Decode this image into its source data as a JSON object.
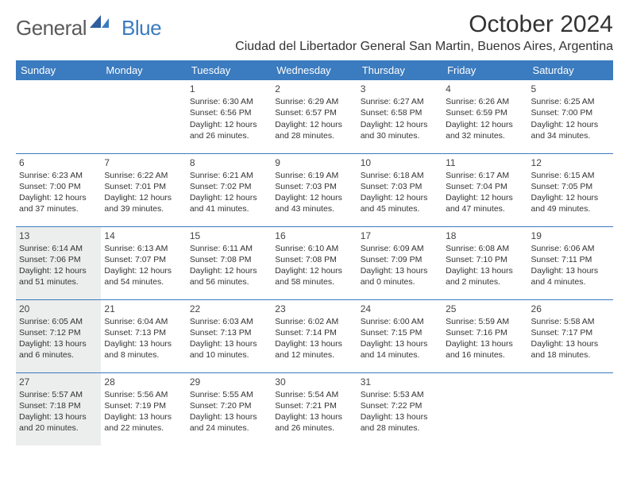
{
  "logo": {
    "general": "General",
    "blue": "Blue"
  },
  "title": "October 2024",
  "location": "Ciudad del Libertador General San Martin, Buenos Aires, Argentina",
  "colors": {
    "header_bg": "#3b7bbf",
    "header_text": "#ffffff",
    "highlight_bg": "#eceded",
    "row_border": "#3b7bbf",
    "text": "#333333"
  },
  "dayHeaders": [
    "Sunday",
    "Monday",
    "Tuesday",
    "Wednesday",
    "Thursday",
    "Friday",
    "Saturday"
  ],
  "weeks": [
    [
      {
        "blank": true
      },
      {
        "blank": true
      },
      {
        "n": "1",
        "sr": "6:30 AM",
        "ss": "6:56 PM",
        "dl": "12 hours and 26 minutes."
      },
      {
        "n": "2",
        "sr": "6:29 AM",
        "ss": "6:57 PM",
        "dl": "12 hours and 28 minutes."
      },
      {
        "n": "3",
        "sr": "6:27 AM",
        "ss": "6:58 PM",
        "dl": "12 hours and 30 minutes."
      },
      {
        "n": "4",
        "sr": "6:26 AM",
        "ss": "6:59 PM",
        "dl": "12 hours and 32 minutes."
      },
      {
        "n": "5",
        "sr": "6:25 AM",
        "ss": "7:00 PM",
        "dl": "12 hours and 34 minutes."
      }
    ],
    [
      {
        "n": "6",
        "sr": "6:23 AM",
        "ss": "7:00 PM",
        "dl": "12 hours and 37 minutes."
      },
      {
        "n": "7",
        "sr": "6:22 AM",
        "ss": "7:01 PM",
        "dl": "12 hours and 39 minutes."
      },
      {
        "n": "8",
        "sr": "6:21 AM",
        "ss": "7:02 PM",
        "dl": "12 hours and 41 minutes."
      },
      {
        "n": "9",
        "sr": "6:19 AM",
        "ss": "7:03 PM",
        "dl": "12 hours and 43 minutes."
      },
      {
        "n": "10",
        "sr": "6:18 AM",
        "ss": "7:03 PM",
        "dl": "12 hours and 45 minutes."
      },
      {
        "n": "11",
        "sr": "6:17 AM",
        "ss": "7:04 PM",
        "dl": "12 hours and 47 minutes."
      },
      {
        "n": "12",
        "sr": "6:15 AM",
        "ss": "7:05 PM",
        "dl": "12 hours and 49 minutes."
      }
    ],
    [
      {
        "n": "13",
        "sr": "6:14 AM",
        "ss": "7:06 PM",
        "dl": "12 hours and 51 minutes.",
        "hl": true
      },
      {
        "n": "14",
        "sr": "6:13 AM",
        "ss": "7:07 PM",
        "dl": "12 hours and 54 minutes."
      },
      {
        "n": "15",
        "sr": "6:11 AM",
        "ss": "7:08 PM",
        "dl": "12 hours and 56 minutes."
      },
      {
        "n": "16",
        "sr": "6:10 AM",
        "ss": "7:08 PM",
        "dl": "12 hours and 58 minutes."
      },
      {
        "n": "17",
        "sr": "6:09 AM",
        "ss": "7:09 PM",
        "dl": "13 hours and 0 minutes."
      },
      {
        "n": "18",
        "sr": "6:08 AM",
        "ss": "7:10 PM",
        "dl": "13 hours and 2 minutes."
      },
      {
        "n": "19",
        "sr": "6:06 AM",
        "ss": "7:11 PM",
        "dl": "13 hours and 4 minutes."
      }
    ],
    [
      {
        "n": "20",
        "sr": "6:05 AM",
        "ss": "7:12 PM",
        "dl": "13 hours and 6 minutes.",
        "hl": true
      },
      {
        "n": "21",
        "sr": "6:04 AM",
        "ss": "7:13 PM",
        "dl": "13 hours and 8 minutes."
      },
      {
        "n": "22",
        "sr": "6:03 AM",
        "ss": "7:13 PM",
        "dl": "13 hours and 10 minutes."
      },
      {
        "n": "23",
        "sr": "6:02 AM",
        "ss": "7:14 PM",
        "dl": "13 hours and 12 minutes."
      },
      {
        "n": "24",
        "sr": "6:00 AM",
        "ss": "7:15 PM",
        "dl": "13 hours and 14 minutes."
      },
      {
        "n": "25",
        "sr": "5:59 AM",
        "ss": "7:16 PM",
        "dl": "13 hours and 16 minutes."
      },
      {
        "n": "26",
        "sr": "5:58 AM",
        "ss": "7:17 PM",
        "dl": "13 hours and 18 minutes."
      }
    ],
    [
      {
        "n": "27",
        "sr": "5:57 AM",
        "ss": "7:18 PM",
        "dl": "13 hours and 20 minutes.",
        "hl": true
      },
      {
        "n": "28",
        "sr": "5:56 AM",
        "ss": "7:19 PM",
        "dl": "13 hours and 22 minutes."
      },
      {
        "n": "29",
        "sr": "5:55 AM",
        "ss": "7:20 PM",
        "dl": "13 hours and 24 minutes."
      },
      {
        "n": "30",
        "sr": "5:54 AM",
        "ss": "7:21 PM",
        "dl": "13 hours and 26 minutes."
      },
      {
        "n": "31",
        "sr": "5:53 AM",
        "ss": "7:22 PM",
        "dl": "13 hours and 28 minutes."
      },
      {
        "blank": true
      },
      {
        "blank": true
      }
    ]
  ],
  "labels": {
    "sunrise": "Sunrise:",
    "sunset": "Sunset:",
    "daylight": "Daylight:"
  }
}
